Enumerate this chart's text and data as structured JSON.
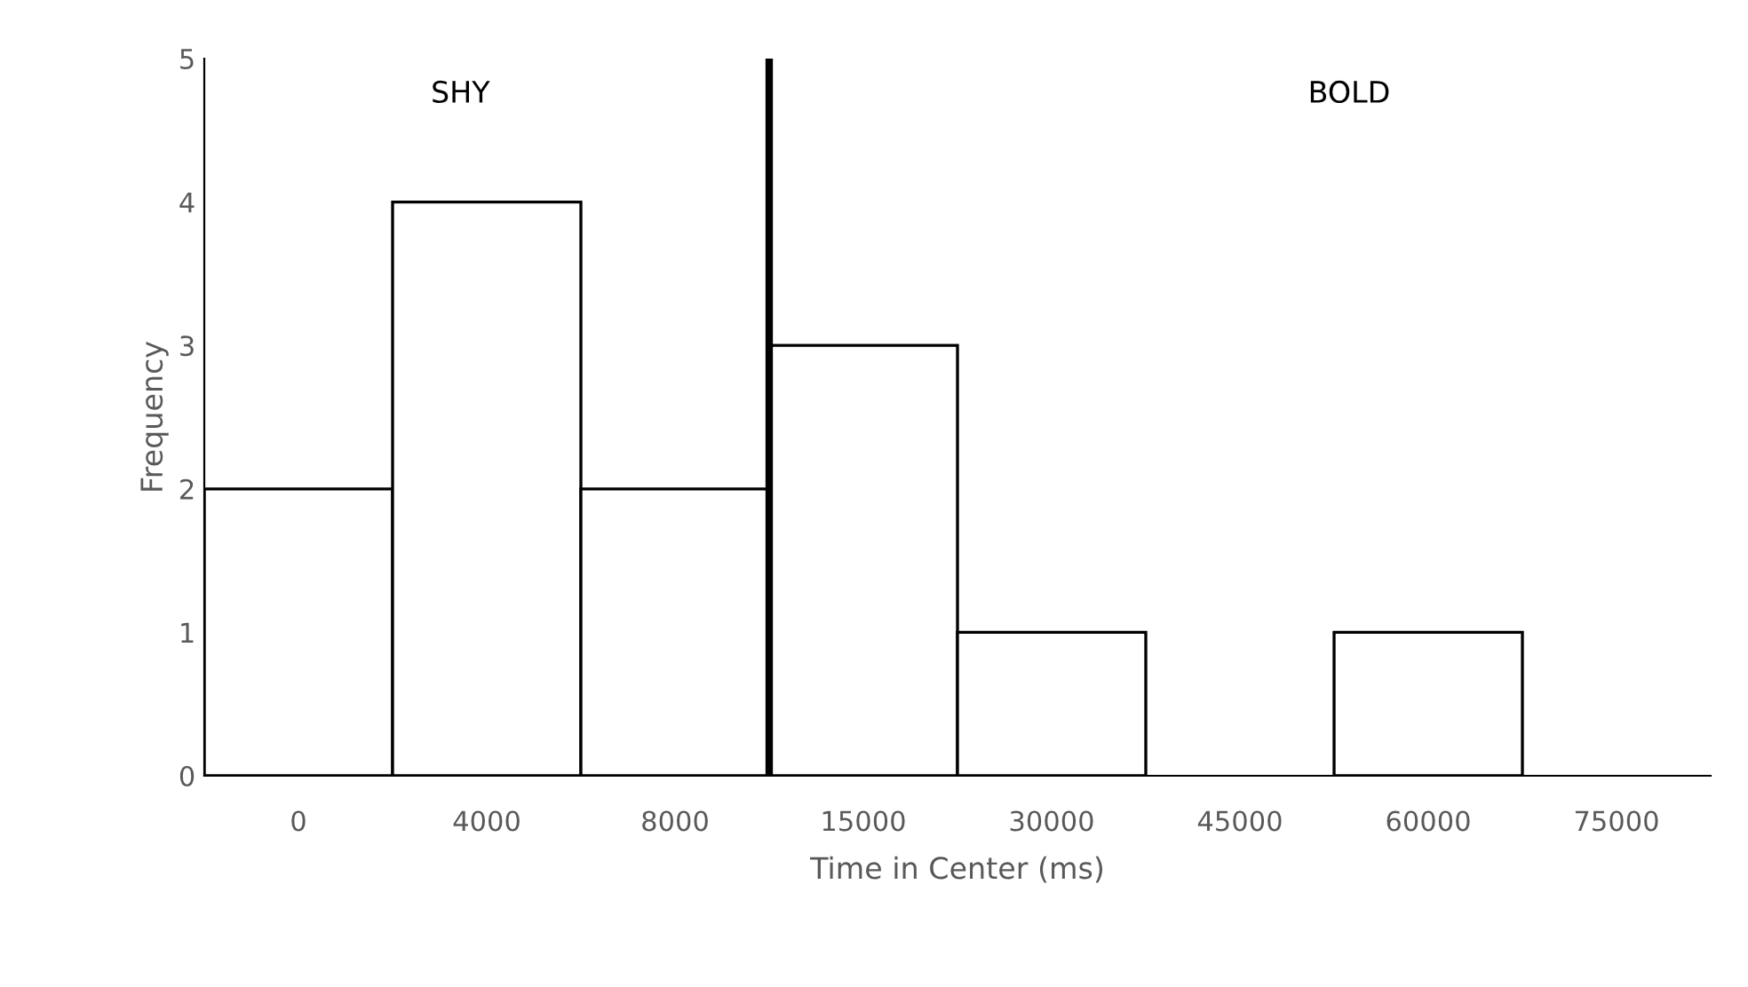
{
  "chart_data": {
    "type": "bar",
    "xlabel": "Time in Center (ms)",
    "ylabel": "Frequency",
    "categories": [
      "0",
      "4000",
      "8000",
      "15000",
      "30000",
      "45000",
      "60000",
      "75000"
    ],
    "values": [
      2,
      4,
      2,
      3,
      1,
      0,
      1,
      0
    ],
    "color": "#ffffff",
    "ylim": [
      0,
      5
    ],
    "yticks": [
      0,
      1,
      2,
      3,
      4,
      5
    ],
    "grid": false,
    "legend": false,
    "annotations": [
      "SHY",
      "BOLD"
    ]
  }
}
